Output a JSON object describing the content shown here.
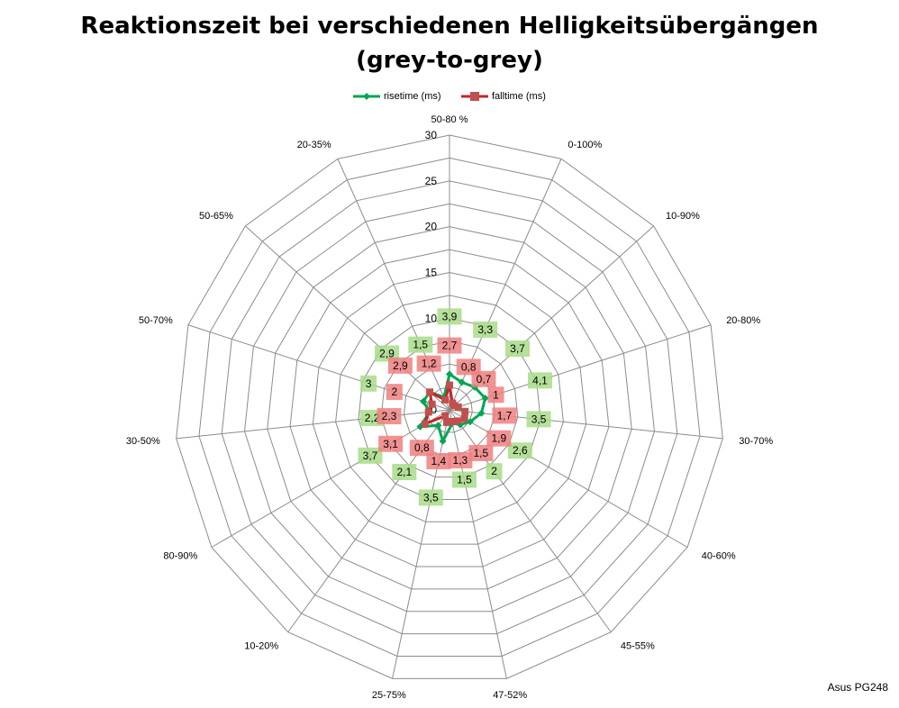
{
  "title_line1": "Reaktionszeit bei verschiedenen Helligkeitsübergängen",
  "title_line2": "(grey-to-grey)",
  "footer": "Asus PG248",
  "chart_data": {
    "type": "radar",
    "categories": [
      "50-80 %",
      "0-100%",
      "10-90%",
      "20-80%",
      "30-70%",
      "40-60%",
      "45-55%",
      "47-52%",
      "25-75%",
      "10-20%",
      "80-90%",
      "30-50%",
      "50-70%",
      "50-65%",
      "20-35%"
    ],
    "rlim": [
      0,
      30
    ],
    "ticks": [
      0,
      5,
      10,
      15,
      20,
      25,
      30
    ],
    "grid": true,
    "legend": "top",
    "series": [
      {
        "name": "risetime (ms)",
        "color": "#00A651",
        "label_bg": "#A8DC8A",
        "marker": "diamond",
        "values": [
          3.9,
          3.3,
          3.7,
          4.1,
          3.5,
          2.6,
          2,
          1.5,
          3.5,
          2.1,
          3.7,
          2.2,
          3,
          2.9,
          1.5
        ]
      },
      {
        "name": "falltime (ms)",
        "color": "#C0262B",
        "label_bg": "#F08080",
        "marker": "square",
        "values": [
          2.7,
          0.8,
          0.7,
          1,
          1.7,
          1.9,
          1.5,
          1.3,
          1.4,
          0.8,
          3.1,
          2.3,
          2,
          2.9,
          1.2
        ]
      }
    ],
    "value_labels": {
      "risetime": [
        "3,9",
        "3,3",
        "3,7",
        "4,1",
        "3,5",
        "2,6",
        "2",
        "1,5",
        "3,5",
        "2,1",
        "3,7",
        "2,2",
        "3",
        "2,9",
        "1,5"
      ],
      "falltime": [
        "2,7",
        "0,8",
        "0,7",
        "1",
        "1,7",
        "1,9",
        "1,5",
        "1,3",
        "1,4",
        "0,8",
        "3,1",
        "2,3",
        "2",
        "2,9",
        "1,2"
      ]
    }
  }
}
